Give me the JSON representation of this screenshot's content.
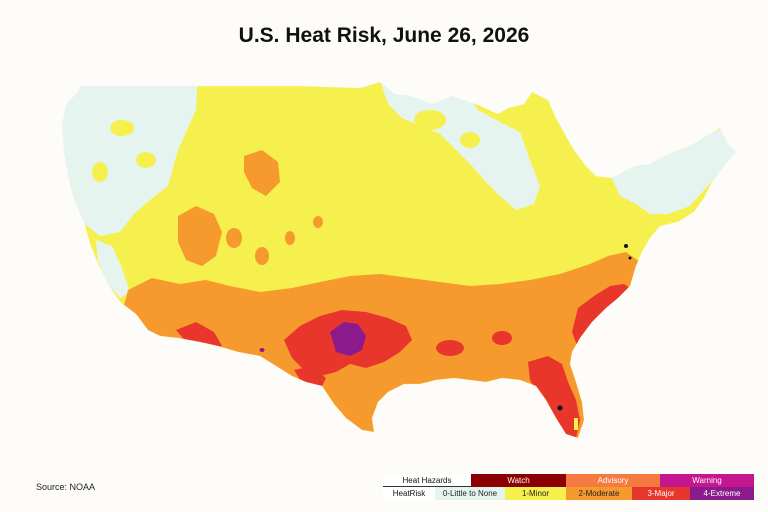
{
  "title": "U.S. Heat Risk, June 26, 2026",
  "source": "Source: NOAA",
  "legend": {
    "hazards_label": "Heat Hazards",
    "hazards": [
      {
        "label": "Watch",
        "color": "#8b0000"
      },
      {
        "label": "Advisory",
        "color": "#f47a42"
      },
      {
        "label": "Warning",
        "color": "#c4168e"
      }
    ],
    "risk_label": "HeatRisk",
    "levels": [
      {
        "label": "0-Little to None",
        "color": "#e6f4ef"
      },
      {
        "label": "1-Minor",
        "color": "#f5f04d"
      },
      {
        "label": "2-Moderate",
        "color": "#f79a2e"
      },
      {
        "label": "3-Major",
        "color": "#e8362d"
      },
      {
        "label": "4-Extreme",
        "color": "#8b1a8c"
      }
    ]
  }
}
